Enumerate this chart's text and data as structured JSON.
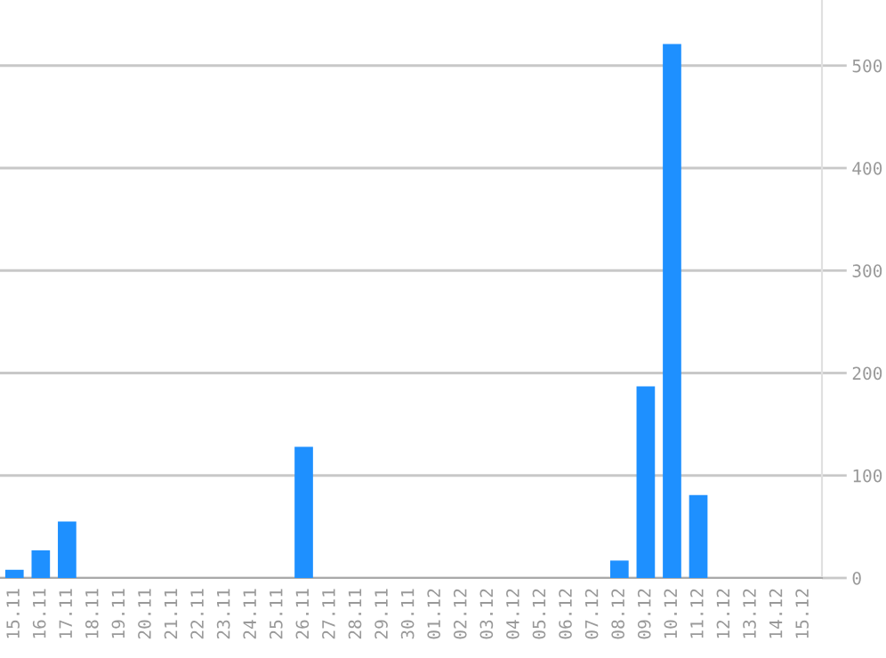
{
  "chart_data": {
    "type": "bar",
    "categories": [
      "15.11",
      "16.11",
      "17.11",
      "18.11",
      "19.11",
      "20.11",
      "21.11",
      "22.11",
      "23.11",
      "24.11",
      "25.11",
      "26.11",
      "27.11",
      "28.11",
      "29.11",
      "30.11",
      "01.12",
      "02.12",
      "03.12",
      "04.12",
      "05.12",
      "06.12",
      "07.12",
      "08.12",
      "09.12",
      "10.12",
      "11.12",
      "12.12",
      "13.12",
      "14.12",
      "15.12"
    ],
    "values": [
      8,
      27,
      55,
      0,
      0,
      0,
      0,
      0,
      0,
      0,
      0,
      128,
      0,
      0,
      0,
      0,
      0,
      0,
      0,
      0,
      0,
      0,
      0,
      17,
      187,
      521,
      81,
      0,
      0,
      0,
      0
    ],
    "color": "#1e90ff",
    "ylim": [
      0,
      564
    ],
    "yticks": [
      0,
      100,
      200,
      300,
      400,
      500
    ],
    "grid": "y"
  }
}
